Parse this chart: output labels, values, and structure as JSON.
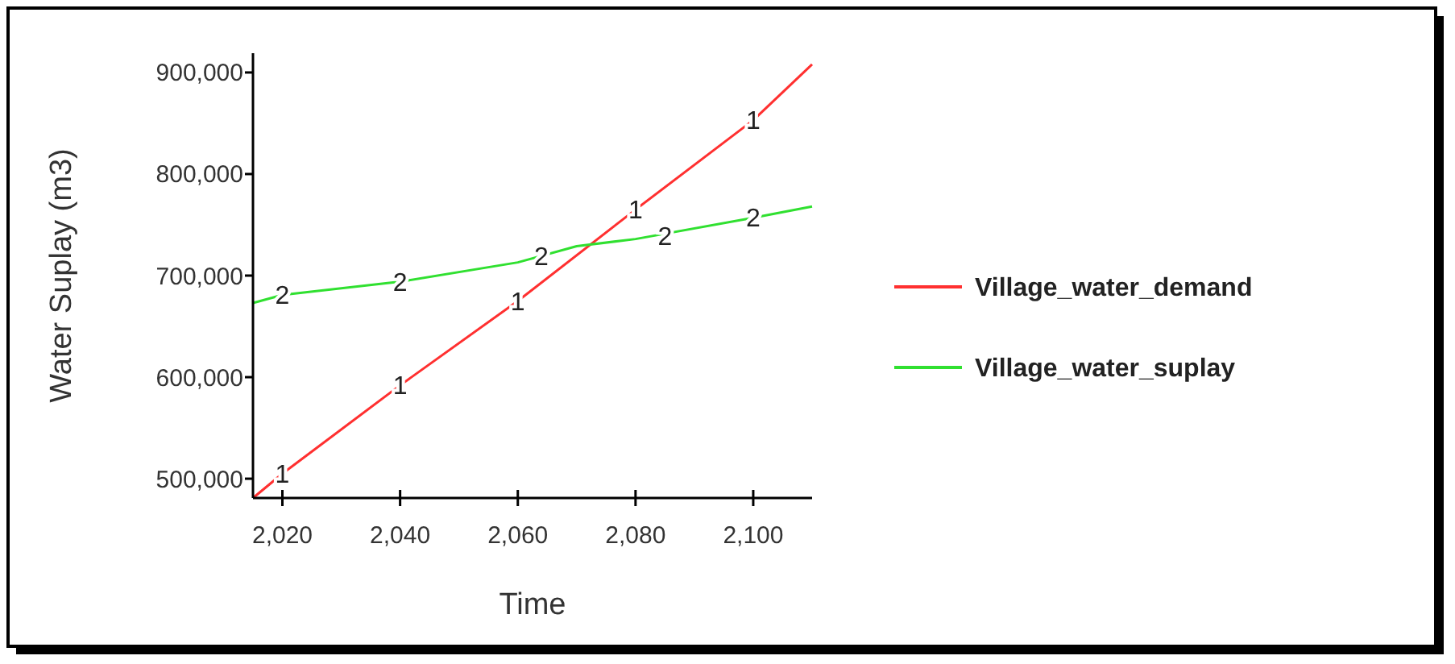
{
  "chart_data": {
    "type": "line",
    "xlabel": "Time",
    "ylabel": "Water Suplay (m3)",
    "xlim": [
      2015,
      2110
    ],
    "xticks": [
      {
        "value": 2020,
        "label": "2,020"
      },
      {
        "value": 2040,
        "label": "2,040"
      },
      {
        "value": 2060,
        "label": "2,060"
      },
      {
        "value": 2080,
        "label": "2,080"
      },
      {
        "value": 2100,
        "label": "2,100"
      }
    ],
    "ylim": [
      481000,
      919000
    ],
    "yticks": [
      {
        "value": 500000,
        "label": "500,000"
      },
      {
        "value": 600000,
        "label": "600,000"
      },
      {
        "value": 700000,
        "label": "700,000"
      },
      {
        "value": 800000,
        "label": "800,000"
      },
      {
        "value": 900000,
        "label": "900,000"
      }
    ],
    "grid": false,
    "legend": "right",
    "marker": "none",
    "line_style": "solid",
    "series": [
      {
        "name": "Village_water_demand",
        "color": "#ff3030",
        "x": [
          2015,
          2020,
          2040,
          2060,
          2080,
          2100,
          2110
        ],
        "values": [
          481000,
          505000,
          592000,
          675000,
          765000,
          853000,
          908000
        ]
      },
      {
        "name": "Village_water_suplay",
        "color": "#30e030",
        "x": [
          2015,
          2020,
          2040,
          2060,
          2070,
          2080,
          2100,
          2110
        ],
        "values": [
          673000,
          681000,
          694000,
          713000,
          729000,
          736000,
          757000,
          768000
        ]
      }
    ],
    "annotations": [
      {
        "text": "1",
        "x": 2020,
        "y": 505000
      },
      {
        "text": "1",
        "x": 2040,
        "y": 592000
      },
      {
        "text": "1",
        "x": 2060,
        "y": 675000
      },
      {
        "text": "1",
        "x": 2080,
        "y": 765000
      },
      {
        "text": "1",
        "x": 2100,
        "y": 853000
      },
      {
        "text": "2",
        "x": 2020,
        "y": 681000
      },
      {
        "text": "2",
        "x": 2040,
        "y": 694000
      },
      {
        "text": "2",
        "x": 2064,
        "y": 719000
      },
      {
        "text": "2",
        "x": 2085,
        "y": 739000
      },
      {
        "text": "2",
        "x": 2100,
        "y": 757000
      }
    ]
  }
}
